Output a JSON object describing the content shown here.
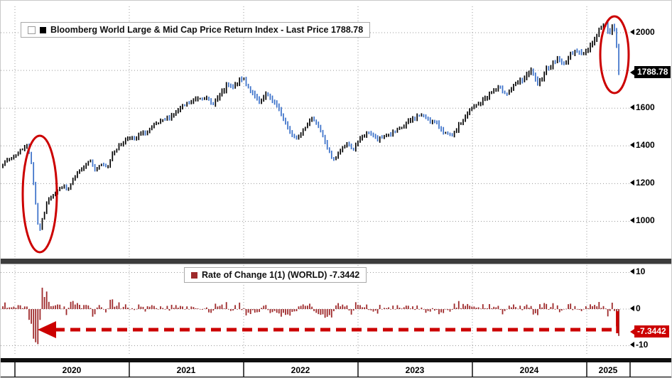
{
  "colors": {
    "price_up": "#000000",
    "price_down": "#3a70c9",
    "roc_bar": "#9e2a2b",
    "annotation_red": "#cc0000",
    "badge_price_bg": "#000000",
    "badge_roc_bg": "#cc0000",
    "separator": "#3c3c3c"
  },
  "chart_data": [
    {
      "type": "candlestick",
      "panel": "price",
      "legend": "Bloomberg World Large & Mid Cap Price Return Index - Last Price 1788.78",
      "last_price": 1788.78,
      "last_price_label": "1788.78",
      "ylim": [
        850,
        2120
      ],
      "yticks": [
        "2000",
        "1600",
        "1400",
        "1200",
        "1000"
      ],
      "x_years": [
        "2020",
        "2021",
        "2022",
        "2023",
        "2024",
        "2025"
      ],
      "grid": "dotted",
      "legend_position": "top-left",
      "anchors": [
        [
          2019.875,
          1295
        ],
        [
          2019.95,
          1330
        ],
        [
          2020.02,
          1360
        ],
        [
          2020.08,
          1395
        ],
        [
          2020.1,
          1408
        ],
        [
          2020.14,
          1330
        ],
        [
          2020.17,
          1160
        ],
        [
          2020.21,
          935
        ],
        [
          2020.24,
          1010
        ],
        [
          2020.29,
          1120
        ],
        [
          2020.35,
          1150
        ],
        [
          2020.42,
          1190
        ],
        [
          2020.46,
          1160
        ],
        [
          2020.52,
          1230
        ],
        [
          2020.58,
          1280
        ],
        [
          2020.66,
          1330
        ],
        [
          2020.7,
          1270
        ],
        [
          2020.75,
          1305
        ],
        [
          2020.81,
          1280
        ],
        [
          2020.85,
          1360
        ],
        [
          2020.92,
          1405
        ],
        [
          2021.0,
          1450
        ],
        [
          2021.05,
          1430
        ],
        [
          2021.1,
          1465
        ],
        [
          2021.17,
          1480
        ],
        [
          2021.22,
          1510
        ],
        [
          2021.3,
          1530
        ],
        [
          2021.38,
          1565
        ],
        [
          2021.45,
          1600
        ],
        [
          2021.52,
          1625
        ],
        [
          2021.6,
          1655
        ],
        [
          2021.66,
          1660
        ],
        [
          2021.72,
          1620
        ],
        [
          2021.8,
          1670
        ],
        [
          2021.86,
          1725
        ],
        [
          2021.9,
          1700
        ],
        [
          2021.96,
          1745
        ],
        [
          2022.0,
          1757
        ],
        [
          2022.05,
          1700
        ],
        [
          2022.1,
          1655
        ],
        [
          2022.15,
          1625
        ],
        [
          2022.19,
          1672
        ],
        [
          2022.26,
          1640
        ],
        [
          2022.33,
          1565
        ],
        [
          2022.4,
          1480
        ],
        [
          2022.46,
          1440
        ],
        [
          2022.55,
          1515
        ],
        [
          2022.62,
          1545
        ],
        [
          2022.7,
          1440
        ],
        [
          2022.78,
          1315
        ],
        [
          2022.84,
          1370
        ],
        [
          2022.9,
          1415
        ],
        [
          2022.96,
          1385
        ],
        [
          2023.03,
          1445
        ],
        [
          2023.1,
          1475
        ],
        [
          2023.17,
          1430
        ],
        [
          2023.24,
          1455
        ],
        [
          2023.32,
          1470
        ],
        [
          2023.4,
          1505
        ],
        [
          2023.48,
          1545
        ],
        [
          2023.55,
          1565
        ],
        [
          2023.62,
          1540
        ],
        [
          2023.7,
          1510
        ],
        [
          2023.76,
          1470
        ],
        [
          2023.82,
          1445
        ],
        [
          2023.88,
          1505
        ],
        [
          2023.95,
          1565
        ],
        [
          2024.0,
          1600
        ],
        [
          2024.07,
          1630
        ],
        [
          2024.15,
          1675
        ],
        [
          2024.23,
          1710
        ],
        [
          2024.3,
          1680
        ],
        [
          2024.38,
          1725
        ],
        [
          2024.45,
          1755
        ],
        [
          2024.52,
          1800
        ],
        [
          2024.57,
          1715
        ],
        [
          2024.63,
          1795
        ],
        [
          2024.7,
          1835
        ],
        [
          2024.75,
          1865
        ],
        [
          2024.79,
          1825
        ],
        [
          2024.85,
          1875
        ],
        [
          2024.9,
          1915
        ],
        [
          2024.95,
          1880
        ],
        [
          2025.0,
          1905
        ],
        [
          2025.06,
          1955
        ],
        [
          2025.12,
          2030
        ],
        [
          2025.16,
          2045
        ],
        [
          2025.2,
          2000
        ],
        [
          2025.235,
          2040
        ],
        [
          2025.26,
          1931
        ],
        [
          2025.28,
          1788.78
        ]
      ],
      "annotations": [
        "red ellipse circling the Mar-2020 crash low near 935",
        "red ellipse circling the Apr-2025 drop to 1788.78"
      ]
    },
    {
      "type": "bar",
      "panel": "rate-of-change",
      "legend": "Rate of Change 1(1) (WORLD) -7.3442",
      "last_value": -7.3442,
      "last_value_label": "-7.3442",
      "ylim": [
        -13,
        11
      ],
      "yticks": [
        "10",
        "0",
        "-10"
      ],
      "derived_from": "weekly percent change of the price series",
      "annotations": [
        "red dashed arrow pointing left from the last bar (-7.3442) back to the Mar-2020 spike lows"
      ]
    }
  ]
}
